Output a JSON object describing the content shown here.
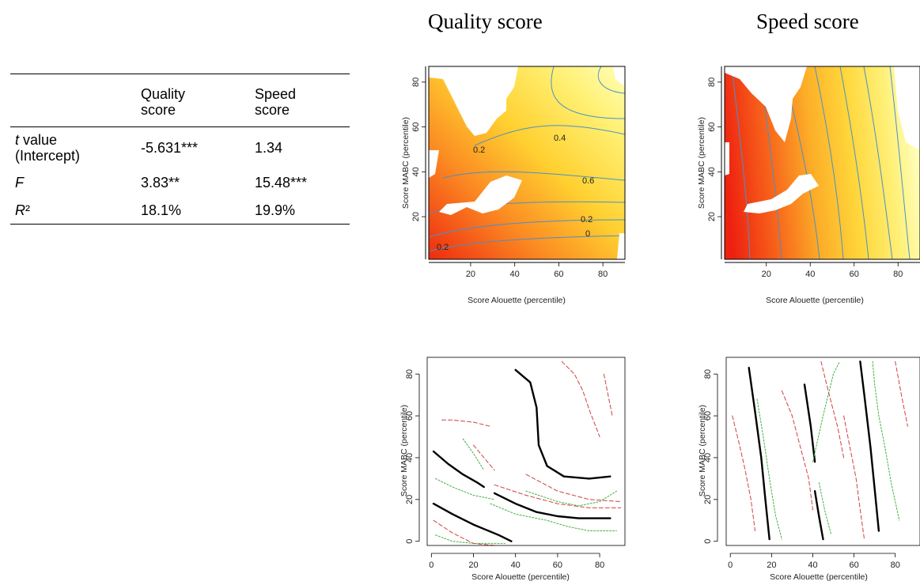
{
  "titles": {
    "quality": "Quality score",
    "speed": "Speed score"
  },
  "table": {
    "headers": [
      "",
      "Quality\nscore",
      "Speed\nscore"
    ],
    "rows": [
      {
        "label_italic": "t",
        "label_rest": " value\n(Intercept)",
        "quality": "-5.631***",
        "speed": "1.34"
      },
      {
        "label_italic": "F",
        "label_rest": "",
        "quality": "3.83**",
        "speed": "15.48***"
      },
      {
        "label_italic": "R",
        "label_rest": "²",
        "quality": "18.1%",
        "speed": "19.9%"
      }
    ]
  },
  "colors": {
    "high": "#ffffb0",
    "mid": "#ffd23c",
    "low": "#f03010",
    "contour": "#4a90c8",
    "ci_low": "#d04040",
    "ci_high": "#40b040",
    "fit": "#000000"
  },
  "chart_data": [
    {
      "type": "heatmap",
      "panel": "quality-surface",
      "xlabel": "Score Alouette (percentile)",
      "ylabel": "Score MABC (percentile)",
      "xticks": [
        20,
        40,
        60,
        80
      ],
      "yticks": [
        20,
        40,
        60,
        80
      ],
      "xlim": [
        1,
        90
      ],
      "ylim": [
        1,
        87
      ],
      "contour_levels": [
        -0.4,
        -0.2,
        0,
        0.2,
        0.4,
        0.6,
        0.8
      ],
      "colorscale": "low=red, high=yellow"
    },
    {
      "type": "heatmap",
      "panel": "speed-surface",
      "xlabel": "Score Alouette (percentile)",
      "ylabel": "Score MABC (percentile)",
      "xticks": [
        20,
        40,
        60,
        80
      ],
      "yticks": [
        20,
        40,
        60,
        80
      ],
      "xlim": [
        1,
        90
      ],
      "ylim": [
        1,
        87
      ],
      "contour_levels": [
        -0.6,
        -0.4,
        -0.2,
        0,
        0.2,
        0.4,
        0.6,
        0.8,
        1
      ],
      "colorscale": "low=red, high=yellow"
    },
    {
      "type": "line",
      "panel": "quality-contours",
      "xlabel": "Score Alouette (percentile)",
      "ylabel": "Score MABC (percentile)",
      "xticks": [
        0,
        20,
        40,
        60,
        80
      ],
      "yticks": [
        0,
        20,
        40,
        60,
        80
      ],
      "xlim": [
        -2,
        92
      ],
      "ylim": [
        -2,
        88
      ],
      "series": [
        {
          "style": "fit",
          "x": [
            1,
            10,
            20,
            32,
            38
          ],
          "y": [
            18,
            13,
            8,
            3,
            0
          ]
        },
        {
          "style": "fit",
          "x": [
            1,
            8,
            15,
            22,
            25
          ],
          "y": [
            43,
            37,
            32,
            28,
            26
          ]
        },
        {
          "style": "fit",
          "x": [
            30,
            40,
            50,
            60,
            70,
            85
          ],
          "y": [
            23,
            18,
            14,
            12,
            11,
            11
          ]
        },
        {
          "style": "fit",
          "x": [
            40,
            47,
            50,
            51,
            55,
            63,
            75,
            85
          ],
          "y": [
            82,
            76,
            64,
            46,
            36,
            31,
            30,
            31
          ]
        },
        {
          "style": "ci_high",
          "x": [
            2,
            10,
            20,
            35
          ],
          "y": [
            3,
            0,
            -1,
            -1
          ]
        },
        {
          "style": "ci_high",
          "x": [
            2,
            10,
            20,
            30
          ],
          "y": [
            30,
            26,
            22,
            20
          ]
        },
        {
          "style": "ci_high",
          "x": [
            15,
            20,
            25
          ],
          "y": [
            49,
            42,
            34
          ]
        },
        {
          "style": "ci_high",
          "x": [
            28,
            40,
            55,
            65,
            75,
            88
          ],
          "y": [
            18,
            13,
            10,
            7,
            5,
            5
          ]
        },
        {
          "style": "ci_high",
          "x": [
            45,
            60,
            70,
            80,
            88
          ],
          "y": [
            24,
            19,
            17,
            19,
            24
          ]
        },
        {
          "style": "ci_low",
          "x": [
            1,
            10,
            20,
            30
          ],
          "y": [
            10,
            4,
            -1,
            -2
          ]
        },
        {
          "style": "ci_low",
          "x": [
            5,
            10,
            20,
            28
          ],
          "y": [
            58,
            58,
            57,
            55
          ]
        },
        {
          "style": "ci_low",
          "x": [
            20,
            25,
            30
          ],
          "y": [
            46,
            40,
            34
          ]
        },
        {
          "style": "ci_low",
          "x": [
            30,
            45,
            60,
            75,
            90
          ],
          "y": [
            27,
            22,
            18,
            16,
            16
          ]
        },
        {
          "style": "ci_low",
          "x": [
            45,
            60,
            75,
            90
          ],
          "y": [
            32,
            24,
            20,
            19
          ]
        },
        {
          "style": "ci_low",
          "x": [
            62,
            68,
            72,
            75,
            80
          ],
          "y": [
            86,
            80,
            72,
            63,
            50
          ]
        },
        {
          "style": "ci_low",
          "x": [
            82,
            84,
            86
          ],
          "y": [
            80,
            70,
            60
          ]
        }
      ]
    },
    {
      "type": "line",
      "panel": "speed-contours",
      "xlabel": "Score Alouette (percentile)",
      "ylabel": "Score MABC (percentile)",
      "xticks": [
        0,
        20,
        40,
        60,
        80
      ],
      "yticks": [
        0,
        20,
        40,
        60,
        80
      ],
      "xlim": [
        -2,
        92
      ],
      "ylim": [
        -2,
        88
      ],
      "series": [
        {
          "style": "fit",
          "x": [
            9,
            12,
            15,
            17,
            19
          ],
          "y": [
            83,
            62,
            40,
            20,
            1
          ]
        },
        {
          "style": "fit",
          "x": [
            36,
            39,
            41
          ],
          "y": [
            75,
            55,
            38
          ]
        },
        {
          "style": "fit",
          "x": [
            41,
            43,
            45
          ],
          "y": [
            24,
            12,
            1
          ]
        },
        {
          "style": "fit",
          "x": [
            63,
            65,
            68,
            70,
            72
          ],
          "y": [
            86,
            70,
            45,
            25,
            5
          ]
        },
        {
          "style": "ci_high",
          "x": [
            13,
            16,
            19,
            22,
            25
          ],
          "y": [
            68,
            50,
            30,
            12,
            1
          ]
        },
        {
          "style": "ci_high",
          "x": [
            40,
            45,
            50,
            53
          ],
          "y": [
            38,
            60,
            80,
            86
          ]
        },
        {
          "style": "ci_high",
          "x": [
            43,
            46,
            49
          ],
          "y": [
            28,
            14,
            3
          ]
        },
        {
          "style": "ci_high",
          "x": [
            69,
            70,
            72,
            75,
            78,
            82
          ],
          "y": [
            86,
            75,
            60,
            45,
            28,
            10
          ]
        },
        {
          "style": "ci_low",
          "x": [
            1,
            4,
            7,
            10,
            12
          ],
          "y": [
            60,
            48,
            35,
            20,
            5
          ]
        },
        {
          "style": "ci_low",
          "x": [
            25,
            30,
            34,
            38,
            40
          ],
          "y": [
            72,
            60,
            45,
            30,
            15
          ]
        },
        {
          "style": "ci_low",
          "x": [
            44,
            48,
            52,
            55
          ],
          "y": [
            86,
            70,
            55,
            40
          ]
        },
        {
          "style": "ci_low",
          "x": [
            55,
            58,
            61,
            63,
            65
          ],
          "y": [
            60,
            45,
            30,
            15,
            1
          ]
        },
        {
          "style": "ci_low",
          "x": [
            80,
            83,
            86
          ],
          "y": [
            86,
            70,
            55
          ]
        }
      ]
    }
  ]
}
